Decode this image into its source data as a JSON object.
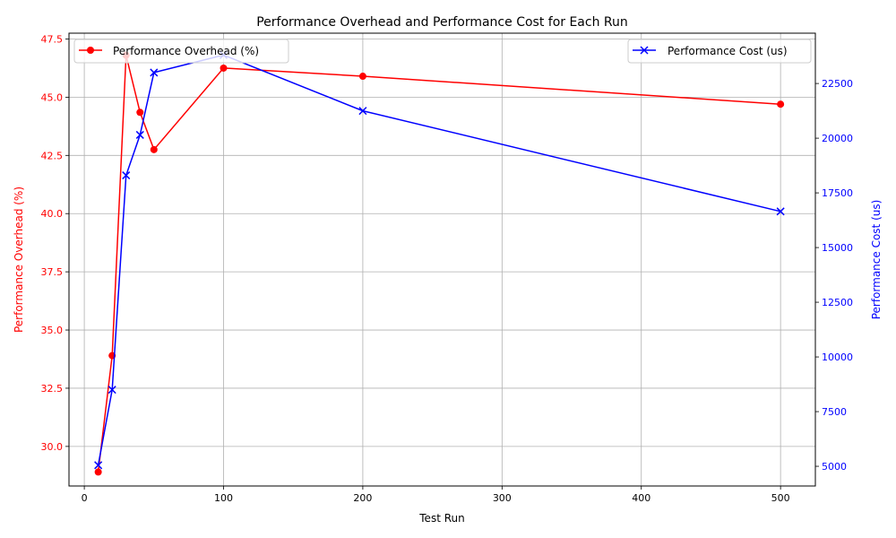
{
  "chart_data": {
    "type": "line",
    "title": "Performance Overhead and Performance Cost for Each Run",
    "xlabel": "Test Run",
    "ylabel_left": "Performance Overhead (%)",
    "ylabel_right": "Performance Cost (us)",
    "xlim": [
      -11,
      525
    ],
    "ylim_left": [
      28.3,
      47.75
    ],
    "ylim_right": [
      4100,
      24800
    ],
    "x_ticks": [
      0,
      100,
      200,
      300,
      400,
      500
    ],
    "y_left_ticks": [
      30.0,
      32.5,
      35.0,
      37.5,
      40.0,
      42.5,
      45.0,
      47.5
    ],
    "y_left_tick_labels": [
      "30.0",
      "32.5",
      "35.0",
      "37.5",
      "40.0",
      "42.5",
      "45.0",
      "47.5"
    ],
    "y_right_ticks": [
      5000,
      7500,
      10000,
      12500,
      15000,
      17500,
      20000,
      22500
    ],
    "grid": true,
    "series": [
      {
        "name": "Performance Overhead (%)",
        "axis": "left",
        "color": "#ff0000",
        "marker": "circle",
        "x": [
          10,
          20,
          30,
          40,
          50,
          100,
          200,
          500
        ],
        "values": [
          28.9,
          33.9,
          46.8,
          44.35,
          42.75,
          46.25,
          45.9,
          44.7
        ],
        "legend_position": "upper-left"
      },
      {
        "name": "Performance Cost (us)",
        "axis": "right",
        "color": "#0000ff",
        "marker": "x",
        "x": [
          10,
          20,
          30,
          40,
          50,
          100,
          200,
          500
        ],
        "values": [
          5050,
          8500,
          18300,
          20150,
          23000,
          23800,
          21250,
          16650
        ],
        "legend_position": "upper-right"
      }
    ]
  }
}
